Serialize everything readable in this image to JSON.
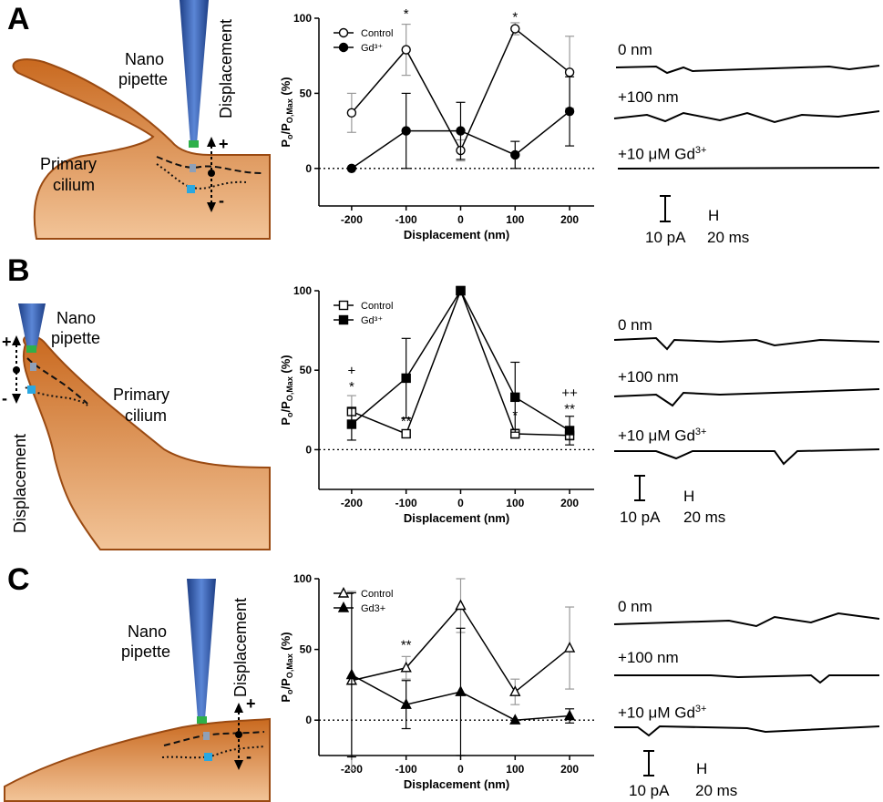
{
  "figure": {
    "panels": [
      {
        "id": "A",
        "letter": "A",
        "cartoon": {
          "labels": [
            "Nano",
            "pipette",
            "Primary",
            "cilium",
            "Displacement",
            "+",
            "-"
          ]
        },
        "traces": {
          "labels": [
            "0 nm",
            "+100 nm"
          ],
          "gd_prefix": "+10 μM Gd",
          "gd_sup": "3+",
          "scale_pa": "10 pA",
          "scale_ms": "20 ms"
        }
      },
      {
        "id": "B",
        "letter": "B",
        "cartoon": {
          "labels": [
            "Nano",
            "pipette",
            "Primary",
            "cilium",
            "Displacement",
            "+",
            "-"
          ]
        },
        "traces": {
          "labels": [
            "0 nm",
            "+100 nm"
          ],
          "gd_prefix": "+10 μM Gd",
          "gd_sup": "3+",
          "scale_pa": "10 pA",
          "scale_ms": "20 ms"
        }
      },
      {
        "id": "C",
        "letter": "C",
        "cartoon": {
          "labels": [
            "Nano",
            "pipette",
            "Displacement",
            "+",
            "-"
          ]
        },
        "traces": {
          "labels": [
            "0 nm",
            "+100 nm"
          ],
          "gd_prefix": "+10 μM Gd",
          "gd_sup": "3+",
          "scale_pa": "10 pA",
          "scale_ms": "20 ms"
        }
      }
    ]
  },
  "chart_data": [
    {
      "panel": "A",
      "type": "line",
      "x": [
        -200,
        -100,
        0,
        100,
        200
      ],
      "xlabel": "Displacement (nm)",
      "ylabel_main": "P",
      "ylabel_sub1": "o",
      "ylabel_mid": "/P",
      "ylabel_sub2": "O,Max",
      "ylabel_unit": " (%)",
      "xticks": [
        "-200",
        "-100",
        "0",
        "100",
        "200"
      ],
      "yticks": [
        "0",
        "50",
        "100"
      ],
      "xlim": [
        -260,
        245
      ],
      "ylim": [
        -25,
        100
      ],
      "zero_line": "dotted",
      "legend_position": "top-left",
      "series": [
        {
          "name": "Control",
          "marker": "open-circle",
          "values": [
            37,
            79,
            12,
            93,
            64
          ],
          "err": [
            13,
            17,
            7,
            4,
            24
          ]
        },
        {
          "name": "Gd³⁺",
          "marker": "filled-circle",
          "values": [
            0,
            25,
            25,
            9,
            38
          ],
          "err": [
            0,
            25,
            19,
            9,
            23
          ]
        }
      ],
      "annotations": [
        {
          "x": -100,
          "y": 100,
          "text": "*"
        },
        {
          "x": 100,
          "y": 98,
          "text": "*"
        }
      ]
    },
    {
      "panel": "B",
      "type": "line",
      "x": [
        -200,
        -100,
        0,
        100,
        200
      ],
      "xlabel": "Displacement (nm)",
      "ylabel_main": "P",
      "ylabel_sub1": "o",
      "ylabel_mid": "/P",
      "ylabel_sub2": "O,Max",
      "ylabel_unit": " (%)",
      "xticks": [
        "-200",
        "-100",
        "0",
        "100",
        "200"
      ],
      "yticks": [
        "0",
        "50",
        "100"
      ],
      "xlim": [
        -260,
        245
      ],
      "ylim": [
        -25,
        100
      ],
      "zero_line": "dotted",
      "legend_position": "top-left",
      "series": [
        {
          "name": "Control",
          "marker": "open-square",
          "values": [
            24,
            10,
            100,
            10,
            9
          ],
          "err": [
            10,
            2,
            0,
            3,
            3
          ]
        },
        {
          "name": "Gd³⁺",
          "marker": "filled-square",
          "values": [
            16,
            45,
            100,
            33,
            12
          ],
          "err": [
            10,
            25,
            0,
            22,
            9
          ]
        }
      ],
      "annotations": [
        {
          "x": -200,
          "y": 47,
          "text": "+"
        },
        {
          "x": -200,
          "y": 37,
          "text": "*"
        },
        {
          "x": -100,
          "y": 15,
          "text": "**"
        },
        {
          "x": 100,
          "y": 19,
          "text": "*"
        },
        {
          "x": 200,
          "y": 33,
          "text": "++"
        },
        {
          "x": 200,
          "y": 23,
          "text": "**"
        }
      ]
    },
    {
      "panel": "C",
      "type": "line",
      "x": [
        -200,
        -100,
        0,
        100,
        200
      ],
      "xlabel": "Displacement (nm)",
      "ylabel_main": "P",
      "ylabel_sub1": "o",
      "ylabel_mid": "/P",
      "ylabel_sub2": "O,Max",
      "ylabel_unit": " (%)",
      "xticks": [
        "-200",
        "-100",
        "0",
        "100",
        "200"
      ],
      "yticks": [
        "0",
        "50",
        "100"
      ],
      "xlim": [
        -260,
        245
      ],
      "ylim": [
        -25,
        100
      ],
      "zero_line": "dotted",
      "legend_position": "top-left",
      "series": [
        {
          "name": "Control",
          "marker": "open-triangle",
          "values": [
            28,
            37,
            81,
            20,
            51
          ],
          "err": [
            63,
            8,
            19,
            9,
            29
          ]
        },
        {
          "name": "Gd3+",
          "marker": "filled-triangle",
          "values": [
            32,
            11,
            20,
            0,
            3
          ],
          "err": [
            58,
            17,
            45,
            0,
            5
          ]
        }
      ],
      "annotations": [
        {
          "x": -100,
          "y": 50,
          "text": "**"
        }
      ]
    }
  ]
}
